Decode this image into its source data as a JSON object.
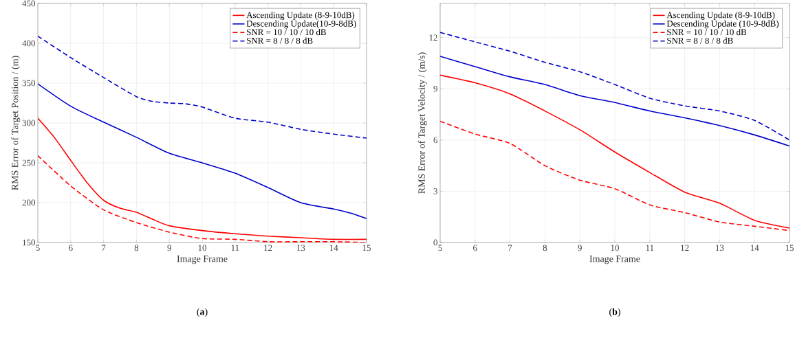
{
  "chart_data": [
    {
      "type": "line",
      "xlabel": "Image Frame",
      "ylabel": "RMS Error of Target Position / (m)",
      "annotations": [
        "(**a**)"
      ],
      "xlim": [
        5,
        15
      ],
      "xticks": [
        5,
        6,
        7,
        8,
        9,
        10,
        11,
        12,
        13,
        14,
        15
      ],
      "ylim": [
        150,
        450
      ],
      "yticks": [
        150,
        200,
        250,
        300,
        350,
        400,
        450
      ],
      "grid": true,
      "legend": "top right",
      "series": [
        {
          "name": "Ascending Update (8-9-10dB)",
          "color": "#ff0000",
          "line_style": "solid",
          "x": [
            5,
            5.5,
            6,
            6.5,
            7,
            7.5,
            8,
            8.5,
            9,
            10,
            11,
            12,
            13,
            14,
            15
          ],
          "values": [
            306,
            282,
            253,
            225,
            203,
            193,
            188,
            179,
            171,
            165,
            161,
            158,
            156,
            154,
            154
          ]
        },
        {
          "name": "Descending Update(10-9-8dB)",
          "color": "#0000cc",
          "line_style": "solid",
          "x": [
            5,
            6,
            7,
            8,
            9,
            10,
            11,
            12,
            13,
            14,
            14.5,
            15
          ],
          "values": [
            349,
            321,
            301,
            282,
            262,
            250,
            237,
            219,
            200,
            192,
            187,
            180
          ]
        },
        {
          "name": "SNR = 10 / 10 / 10 dB",
          "color": "#ff0000",
          "line_style": "dashed",
          "x": [
            5,
            6,
            7,
            8,
            9,
            10,
            11,
            12,
            13,
            14,
            15
          ],
          "values": [
            259,
            221,
            191,
            175,
            163,
            155,
            154,
            151,
            151,
            151,
            150
          ]
        },
        {
          "name": "SNR = 8 / 8 / 8 dB",
          "color": "#0000cc",
          "line_style": "dashed",
          "x": [
            5,
            6,
            7,
            8,
            8.5,
            9,
            9.5,
            10,
            11,
            12,
            13,
            14,
            15
          ],
          "values": [
            409,
            382,
            357,
            333,
            327,
            325,
            324,
            320,
            306,
            301,
            292,
            286,
            281
          ]
        }
      ]
    },
    {
      "type": "line",
      "xlabel": "Image Frame",
      "ylabel": "RMS Error of Target Velocity / (m/s)",
      "annotations": [
        "(**b**)"
      ],
      "xlim": [
        5,
        15
      ],
      "xticks": [
        5,
        6,
        7,
        8,
        9,
        10,
        11,
        12,
        13,
        14,
        15
      ],
      "ylim": [
        0,
        14
      ],
      "yticks": [
        0,
        3,
        6,
        9,
        12
      ],
      "grid": true,
      "legend": "top right",
      "series": [
        {
          "name": "Ascending Update (8-9-10dB)",
          "color": "#ff0000",
          "line_style": "solid",
          "x": [
            5,
            6,
            7,
            8,
            9,
            10,
            11,
            12,
            13,
            14,
            15
          ],
          "values": [
            9.8,
            9.35,
            8.7,
            7.7,
            6.6,
            5.3,
            4.1,
            2.95,
            2.3,
            1.3,
            0.85
          ]
        },
        {
          "name": "Descending Update (10-9-8dB)",
          "color": "#0000cc",
          "line_style": "solid",
          "x": [
            5,
            6,
            7,
            8,
            9,
            10,
            11,
            12,
            13,
            14,
            15
          ],
          "values": [
            10.9,
            10.3,
            9.7,
            9.25,
            8.6,
            8.2,
            7.7,
            7.3,
            6.85,
            6.3,
            5.65
          ]
        },
        {
          "name": "SNR = 10 / 10 / 10 dB",
          "color": "#ff0000",
          "line_style": "dashed",
          "x": [
            5,
            6,
            7,
            8,
            9,
            10,
            11,
            12,
            13,
            14,
            15
          ],
          "values": [
            7.1,
            6.35,
            5.8,
            4.5,
            3.65,
            3.15,
            2.2,
            1.75,
            1.2,
            0.95,
            0.7
          ]
        },
        {
          "name": "SNR = 8 / 8 / 8 dB",
          "color": "#0000cc",
          "line_style": "dashed",
          "x": [
            5,
            6,
            7,
            8,
            9,
            10,
            11,
            12,
            13,
            14,
            15
          ],
          "values": [
            12.3,
            11.75,
            11.2,
            10.55,
            10.0,
            9.25,
            8.45,
            8.0,
            7.7,
            7.15,
            6.0
          ]
        }
      ]
    }
  ]
}
